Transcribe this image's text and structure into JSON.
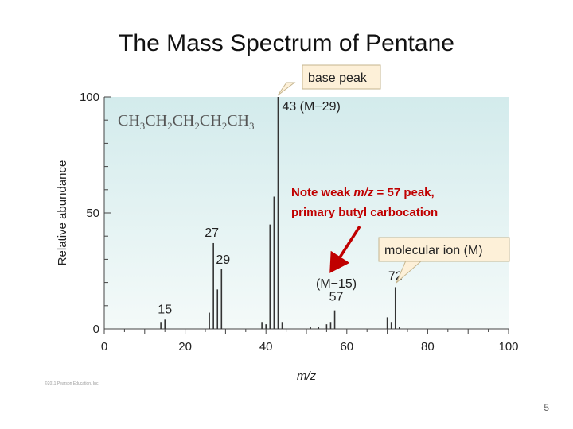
{
  "slide": {
    "title": "The Mass Spectrum of Pentane",
    "page_number": "5",
    "copyright": "©2011 Pearson Education, Inc."
  },
  "colors": {
    "plot_bg_top": "#d3ebec",
    "plot_bg_bottom": "#f4faf9",
    "peak": "#333333",
    "note": "#c00000",
    "callout_fill": "#fdf0d8",
    "callout_stroke": "#c5b58e"
  },
  "chart_data": {
    "type": "bar",
    "title": "",
    "xlabel": "m/z",
    "ylabel": "Relative abundance",
    "xlim": [
      0,
      100
    ],
    "ylim": [
      0,
      100
    ],
    "x_ticks": [
      0,
      20,
      40,
      60,
      80,
      100
    ],
    "y_ticks": [
      0,
      50,
      100
    ],
    "grid": false,
    "formula": {
      "base": [
        "CH",
        "CH",
        "CH",
        "CH",
        "CH"
      ],
      "subs": [
        "3",
        "2",
        "2",
        "2",
        "3"
      ]
    },
    "peaks": [
      {
        "mz": 14,
        "abundance": 3
      },
      {
        "mz": 15,
        "abundance": 4
      },
      {
        "mz": 26,
        "abundance": 7
      },
      {
        "mz": 27,
        "abundance": 37
      },
      {
        "mz": 28,
        "abundance": 17
      },
      {
        "mz": 29,
        "abundance": 26
      },
      {
        "mz": 39,
        "abundance": 3
      },
      {
        "mz": 40,
        "abundance": 2
      },
      {
        "mz": 41,
        "abundance": 45
      },
      {
        "mz": 42,
        "abundance": 57
      },
      {
        "mz": 43,
        "abundance": 100
      },
      {
        "mz": 44,
        "abundance": 3
      },
      {
        "mz": 51,
        "abundance": 1
      },
      {
        "mz": 53,
        "abundance": 1
      },
      {
        "mz": 55,
        "abundance": 2
      },
      {
        "mz": 56,
        "abundance": 3
      },
      {
        "mz": 57,
        "abundance": 8
      },
      {
        "mz": 70,
        "abundance": 5
      },
      {
        "mz": 71,
        "abundance": 3
      },
      {
        "mz": 72,
        "abundance": 18
      },
      {
        "mz": 73,
        "abundance": 1
      }
    ],
    "peak_labels": [
      {
        "text": "15",
        "mz": 15,
        "abundance": 4
      },
      {
        "text": "27",
        "mz": 27,
        "abundance": 37
      },
      {
        "text": "29",
        "mz": 29,
        "abundance": 26
      },
      {
        "text": "43 (M−29)",
        "mz": 43,
        "abundance": 100
      },
      {
        "text": "(M−15)",
        "mz": 57,
        "abundance": 15
      },
      {
        "text": "57",
        "mz": 57,
        "abundance": 8
      },
      {
        "text": "72",
        "mz": 72,
        "abundance": 18
      }
    ],
    "annotations": {
      "base_peak": "base peak",
      "molecular_ion": "molecular ion (M)",
      "note_parts": [
        "Note weak ",
        "m/z",
        " = 57 peak,"
      ],
      "note_line2": "primary butyl carbocation"
    }
  }
}
